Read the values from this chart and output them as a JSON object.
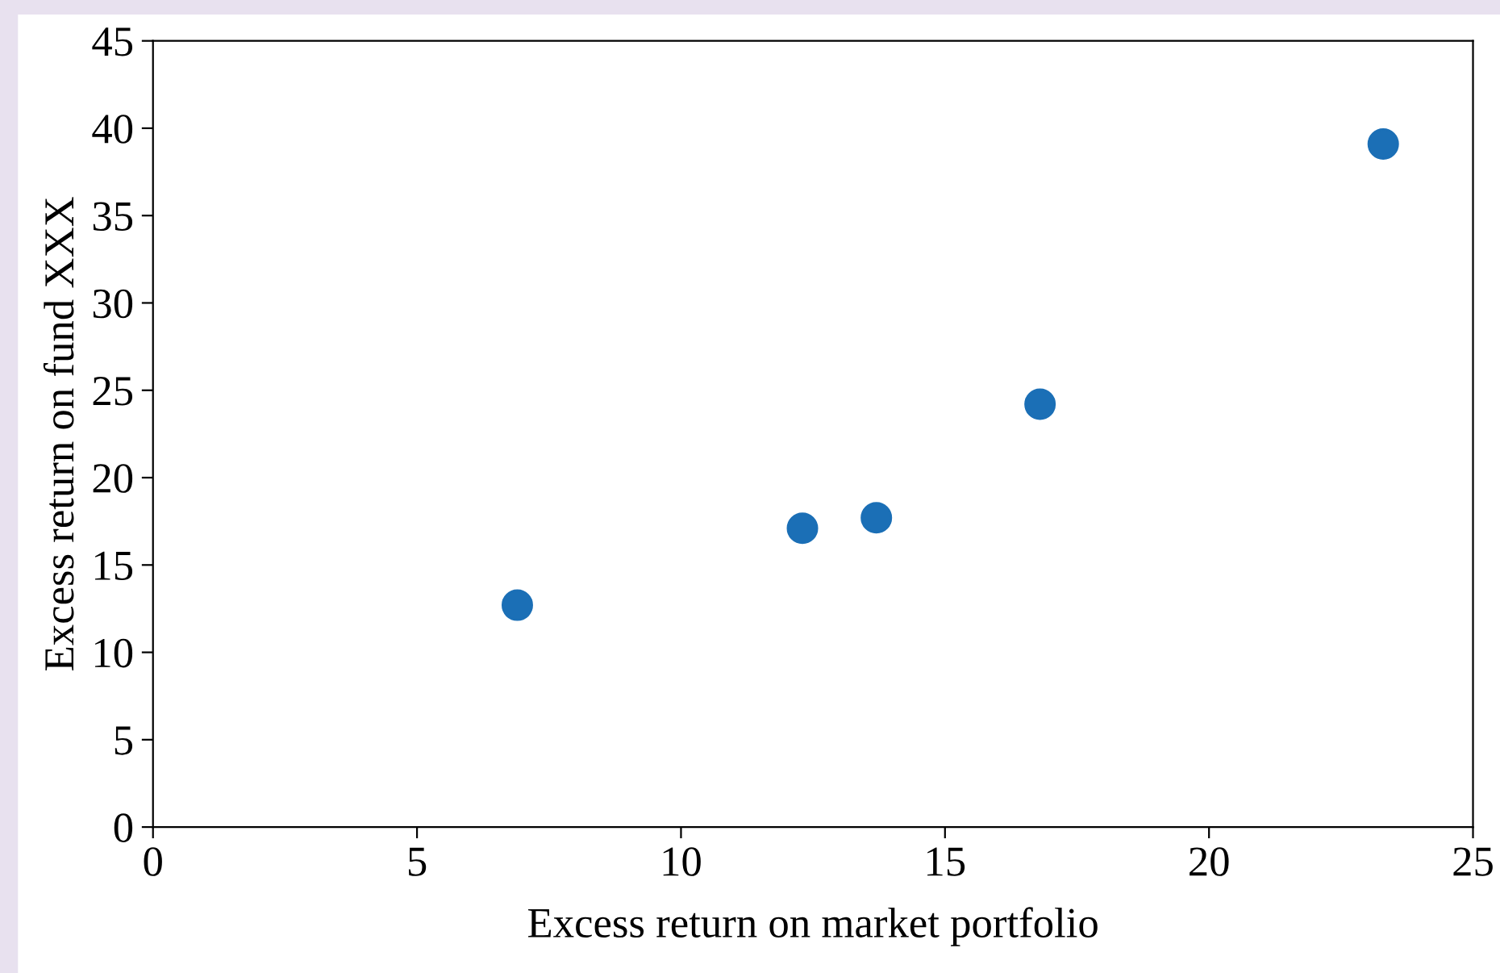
{
  "chart_data": {
    "type": "scatter",
    "xlabel": "Excess return on market portfolio",
    "ylabel": "Excess return on fund XXX",
    "x": [
      6.9,
      12.3,
      13.7,
      16.8,
      23.3
    ],
    "series": [
      {
        "color": "#1b6fb6",
        "values": [
          12.7,
          17.1,
          17.7,
          24.2,
          39.1
        ]
      }
    ],
    "xlim": [
      0,
      25
    ],
    "xticks": [
      0,
      5,
      10,
      15,
      20,
      25
    ],
    "ylim": [
      0,
      45
    ],
    "yticks": [
      0,
      5,
      10,
      15,
      20,
      25,
      30,
      35,
      40,
      45
    ],
    "marker": "circle",
    "grid": false,
    "legend": false
  }
}
